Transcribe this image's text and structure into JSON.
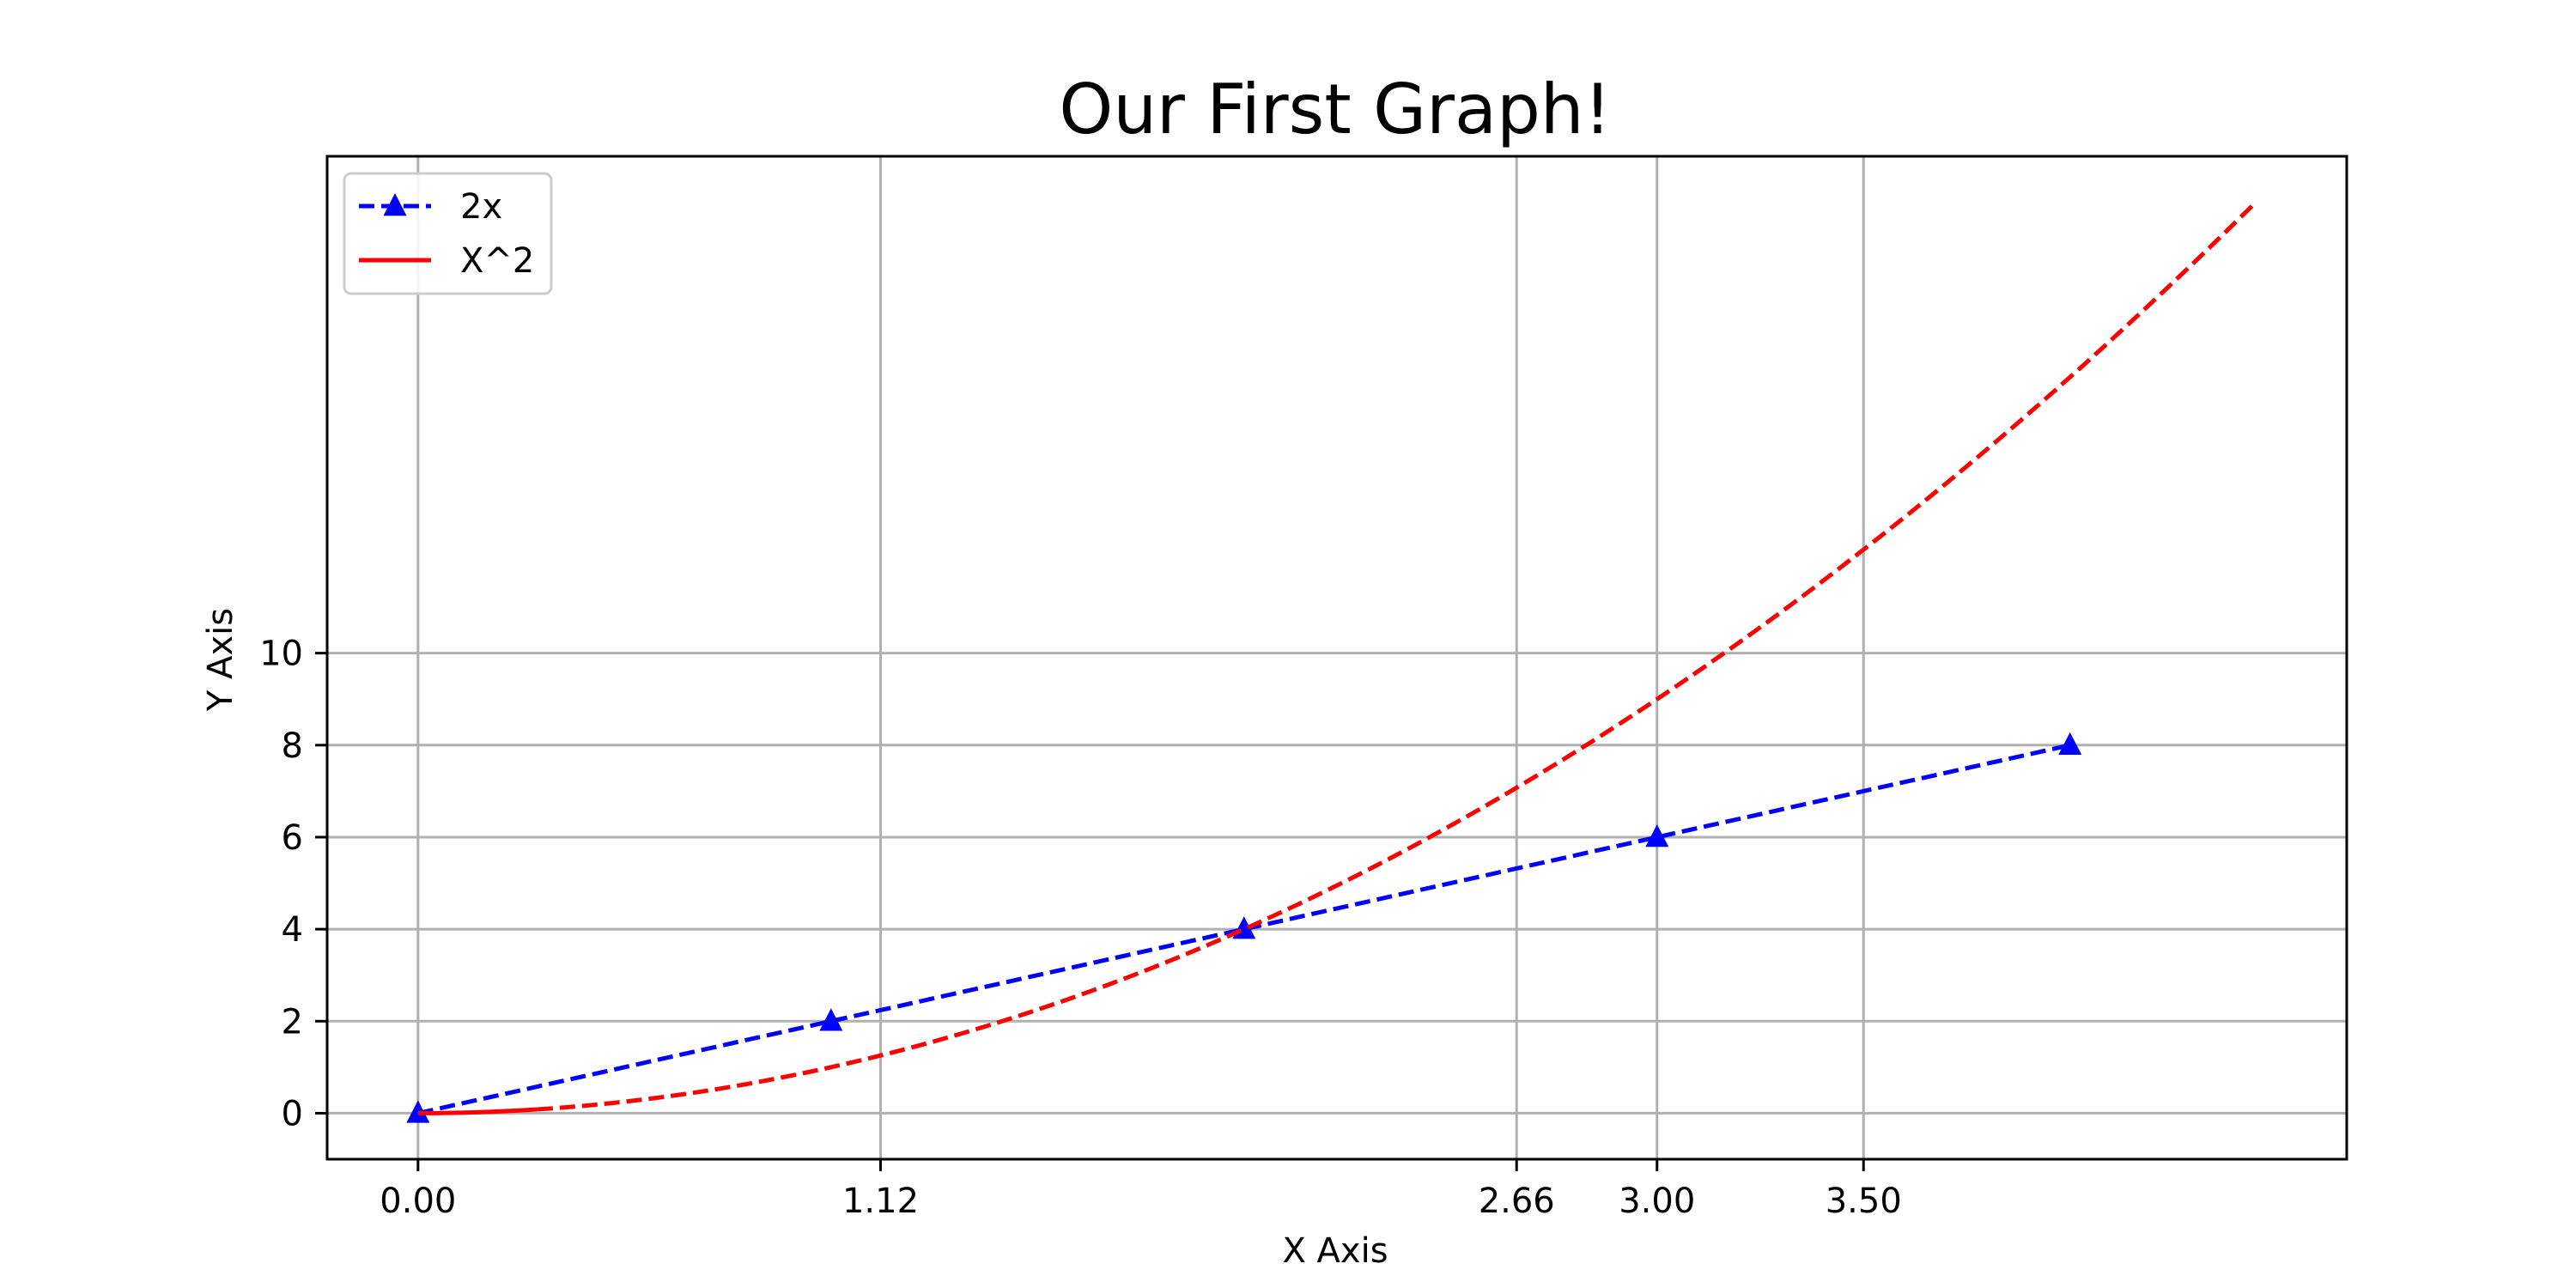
{
  "chart_data": {
    "type": "line",
    "title": "Our First Graph!",
    "xlabel": "X Axis",
    "ylabel": "Y Axis",
    "xlim": [
      -0.22,
      4.67
    ],
    "ylim": [
      -1,
      20.8
    ],
    "xticks": [
      0,
      1.12,
      2.66,
      3,
      3.5
    ],
    "xtick_labels": [
      "0.00",
      "1.12",
      "2.66",
      "3.00",
      "3.50"
    ],
    "yticks": [
      0,
      2,
      4,
      6,
      8,
      10
    ],
    "ytick_labels": [
      "0",
      "2",
      "4",
      "6",
      "8",
      "10"
    ],
    "grid": true,
    "legend_position": "upper-left",
    "series": [
      {
        "name": "2x",
        "color": "#0000ff",
        "line_style": "dashed",
        "marker": "triangle-up",
        "x": [
          0,
          1,
          2,
          3,
          4
        ],
        "y": [
          0,
          2,
          4,
          6,
          8
        ]
      },
      {
        "name": "X^2",
        "color": "#ff0000",
        "line_style": "solid-then-dashed",
        "solid_until_x": 0.3,
        "function": "x^2",
        "x": [
          0,
          0.5,
          1,
          1.5,
          2,
          2.5,
          3,
          3.5,
          4,
          4.45
        ],
        "y": [
          0,
          0.25,
          1,
          2.25,
          4,
          6.25,
          9,
          12.25,
          16,
          19.8
        ]
      }
    ]
  }
}
